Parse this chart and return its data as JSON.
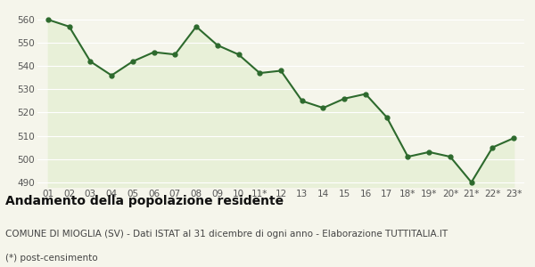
{
  "labels": [
    "01",
    "02",
    "03",
    "04",
    "05",
    "06",
    "07",
    "08",
    "09",
    "10",
    "11*",
    "12",
    "13",
    "14",
    "15",
    "16",
    "17",
    "18*",
    "19*",
    "20*",
    "21*",
    "22*",
    "23*"
  ],
  "values": [
    560,
    557,
    542,
    536,
    542,
    546,
    545,
    557,
    549,
    545,
    537,
    538,
    525,
    522,
    526,
    528,
    518,
    501,
    503,
    501,
    490,
    505,
    509
  ],
  "line_color": "#2d6a2d",
  "fill_color": "#e8f0d8",
  "marker": "o",
  "marker_size": 3.5,
  "line_width": 1.5,
  "title": "Andamento della popolazione residente",
  "subtitle1": "COMUNE DI MIOGLIA (SV) - Dati ISTAT al 31 dicembre di ogni anno - Elaborazione TUTTITALIA.IT",
  "subtitle2": "(*) post-censimento",
  "ylim": [
    488,
    565
  ],
  "yticks": [
    490,
    500,
    510,
    520,
    530,
    540,
    550,
    560
  ],
  "bg_color": "#f5f5eb",
  "plot_bg_color": "#eef3e2",
  "grid_color": "#ffffff",
  "tick_color": "#555555",
  "title_fontsize": 10,
  "subtitle_fontsize": 7.5,
  "tick_fontsize": 7.5
}
